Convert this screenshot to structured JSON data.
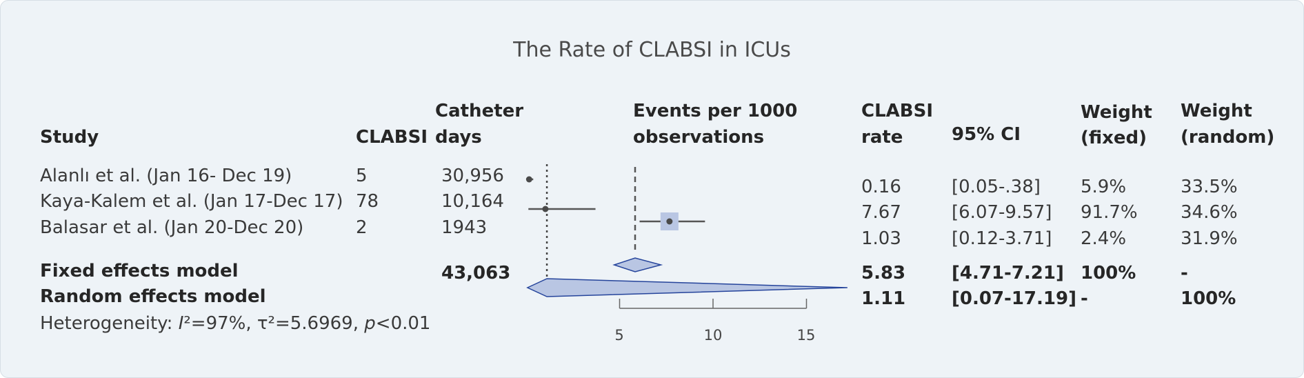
{
  "chart_data": {
    "type": "forest",
    "title": "The Rate of CLABSI in ICUs",
    "headers": {
      "study": "Study",
      "clabsi": "CLABSI",
      "catheter_days_1": "Catheter",
      "catheter_days_2": "days",
      "events_1": "Events per 1000",
      "events_2": "observations",
      "rate_1": "CLABSI",
      "rate_2": "rate",
      "ci": "95% CI",
      "wfixed_1": "Weight",
      "wfixed_2": "(fixed)",
      "wrandom_1": "Weight",
      "wrandom_2": "(random)"
    },
    "studies": [
      {
        "study": "Alanlı et al. (Jan 16- Dec 19)",
        "clabsi": "5",
        "days": "30,956",
        "rate": "0.16",
        "ci": "[0.05-.38]",
        "w_fixed": "5.9%",
        "w_random": "33.5%",
        "est": 0.16,
        "lo": 0.05,
        "hi": 0.38
      },
      {
        "study": "Kaya-Kalem et al. (Jan 17-Dec 17)",
        "clabsi": "78",
        "days": "10,164",
        "rate": "7.67",
        "ci": "[6.07-9.57]",
        "w_fixed": "91.7%",
        "w_random": "34.6%",
        "est": 7.67,
        "lo": 6.07,
        "hi": 9.57
      },
      {
        "study": "Balasar et al. (Jan 20-Dec 20)",
        "clabsi": "2",
        "days": "1943",
        "rate": "1.03",
        "ci": "[0.12-3.71]",
        "w_fixed": "2.4%",
        "w_random": "31.9%",
        "est": 1.03,
        "lo": 0.12,
        "hi": 3.71
      }
    ],
    "fixed": {
      "label": "Fixed effects model",
      "days": "43,063",
      "rate": "5.83",
      "ci": "[4.71-7.21]",
      "w_fixed": "100%",
      "w_random": "-",
      "est": 5.83,
      "lo": 4.71,
      "hi": 7.21
    },
    "random": {
      "label": "Random effects model",
      "rate": "1.11",
      "ci": "[0.07-17.19]",
      "w_fixed": "-",
      "w_random": "100%",
      "est": 1.11,
      "lo": 0.07,
      "hi": 17.19
    },
    "heterogeneity": {
      "prefix": "Heterogeneity: ",
      "i2_sym": "I",
      "i2_rest": "²=97%, τ²=5.6969, ",
      "p_sym": "p",
      "p_rest": "<0.01"
    },
    "axis": {
      "ticks": [
        5,
        10,
        15
      ],
      "tick_labels": [
        "5",
        "10",
        "15"
      ]
    },
    "colors": {
      "text": "#3a3a3a",
      "diamond_fill": "#b9c6e3",
      "diamond_stroke": "#25449b",
      "square": "#b9c6e3",
      "line": "#555555",
      "background": "#eef3f7"
    }
  }
}
